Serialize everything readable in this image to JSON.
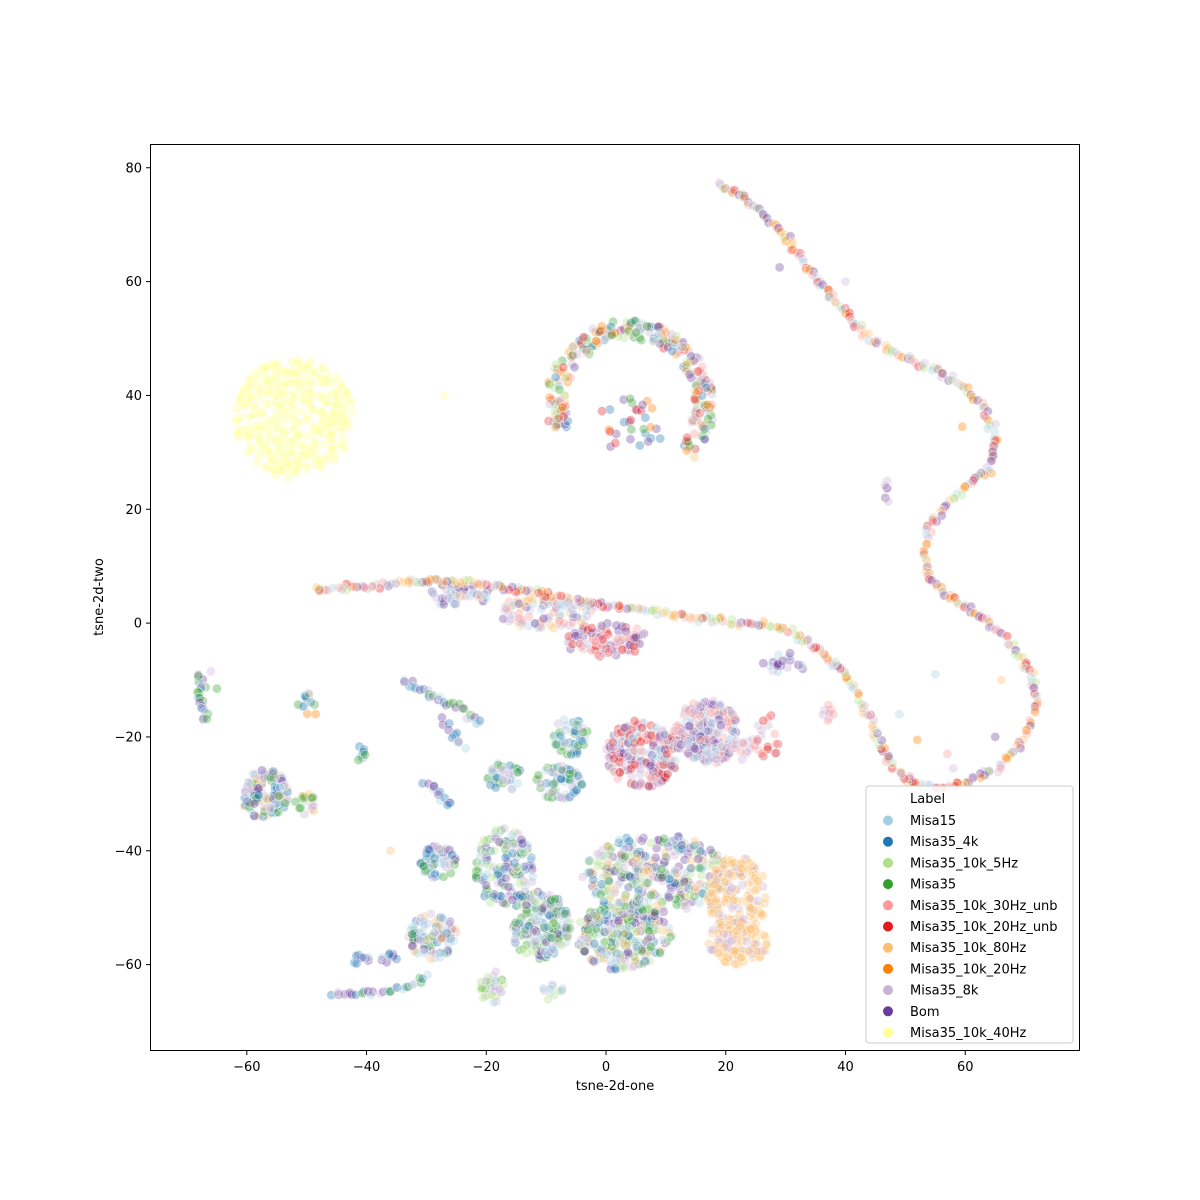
{
  "chart_data": {
    "type": "scatter",
    "xlabel": "tsne-2d-one",
    "ylabel": "tsne-2d-two",
    "xlim": [
      -76,
      79
    ],
    "ylim": [
      -75,
      84
    ],
    "xticks": [
      -60,
      -40,
      -20,
      0,
      20,
      40,
      60
    ],
    "yticks": [
      -60,
      -40,
      -20,
      0,
      20,
      40,
      60,
      80
    ],
    "xtick_labels": [
      "−60",
      "−40",
      "−20",
      "0",
      "20",
      "40",
      "60"
    ],
    "ytick_labels": [
      "−60",
      "−40",
      "−20",
      "0",
      "20",
      "40",
      "60",
      "80"
    ],
    "grid": false,
    "point_opacity": 0.35,
    "legend": {
      "title": "Label",
      "placement": "lower-right",
      "entries": [
        {
          "name": "Misa15",
          "color": "#a6cee3"
        },
        {
          "name": "Misa35_4k",
          "color": "#1f78b4"
        },
        {
          "name": "Misa35_10k_5Hz",
          "color": "#b2df8a"
        },
        {
          "name": "Misa35",
          "color": "#33a02c"
        },
        {
          "name": "Misa35_10k_30Hz_unb",
          "color": "#fb9a99"
        },
        {
          "name": "Misa35_10k_20Hz_unb",
          "color": "#e31a1c"
        },
        {
          "name": "Misa35_10k_80Hz",
          "color": "#fdbf6f"
        },
        {
          "name": "Misa35_10k_20Hz",
          "color": "#ff7f00"
        },
        {
          "name": "Misa35_8k",
          "color": "#cab2d6"
        },
        {
          "name": "Bom",
          "color": "#6a3d9a"
        },
        {
          "name": "Misa35_10k_40Hz",
          "color": "#ffff99"
        }
      ]
    },
    "clusters": [
      {
        "kind": "blob",
        "center": [
          -52,
          36
        ],
        "radius": [
          10,
          10.5
        ],
        "n": 380,
        "series": [
          10
        ]
      },
      {
        "kind": "ring",
        "center": [
          4,
          38.5
        ],
        "radius": [
          14.5,
          14.5
        ],
        "n": 260,
        "gap_deg": [
          200,
          320
        ],
        "series": [
          0,
          1,
          2,
          3,
          4,
          5,
          6,
          7,
          8,
          9
        ]
      },
      {
        "kind": "blob",
        "center": [
          4,
          35
        ],
        "radius": [
          6,
          5
        ],
        "n": 30,
        "series": [
          1,
          3,
          5,
          7,
          9
        ]
      },
      {
        "kind": "blob",
        "center": [
          -11,
          -53
        ],
        "radius": [
          5,
          6
        ],
        "n": 180,
        "series": [
          0,
          1,
          2,
          3,
          8,
          9
        ]
      },
      {
        "kind": "blob",
        "center": [
          3,
          -55
        ],
        "radius": [
          8,
          6
        ],
        "n": 260,
        "series": [
          0,
          1,
          2,
          3,
          6,
          8,
          9
        ]
      },
      {
        "kind": "blob",
        "center": [
          8,
          -44
        ],
        "radius": [
          12,
          7
        ],
        "n": 320,
        "series": [
          0,
          1,
          2,
          3,
          6,
          8,
          9
        ]
      },
      {
        "kind": "blob",
        "center": [
          22,
          -48
        ],
        "radius": [
          5,
          7
        ],
        "n": 160,
        "series": [
          6,
          6,
          6,
          8
        ]
      },
      {
        "kind": "blob",
        "center": [
          22,
          -56
        ],
        "radius": [
          5,
          4
        ],
        "n": 100,
        "series": [
          6,
          6,
          8
        ]
      },
      {
        "kind": "blob",
        "center": [
          -17,
          -43
        ],
        "radius": [
          5,
          7
        ],
        "n": 150,
        "series": [
          0,
          1,
          2,
          3,
          8,
          9
        ]
      },
      {
        "kind": "blob",
        "center": [
          -28,
          -42
        ],
        "radius": [
          3,
          3
        ],
        "n": 60,
        "series": [
          0,
          1,
          3,
          8,
          9
        ]
      },
      {
        "kind": "blob",
        "center": [
          -29,
          -55
        ],
        "radius": [
          4,
          4
        ],
        "n": 80,
        "series": [
          0,
          1,
          3,
          6,
          8,
          9
        ]
      },
      {
        "kind": "blob",
        "center": [
          -8,
          -28
        ],
        "radius": [
          4,
          3
        ],
        "n": 60,
        "series": [
          0,
          1,
          3,
          8
        ]
      },
      {
        "kind": "blob",
        "center": [
          -6,
          -20
        ],
        "radius": [
          3,
          3.5
        ],
        "n": 45,
        "series": [
          0,
          1,
          3,
          8
        ]
      },
      {
        "kind": "blob",
        "center": [
          -17,
          -27
        ],
        "radius": [
          3,
          2.5
        ],
        "n": 40,
        "series": [
          0,
          1,
          3,
          8
        ]
      },
      {
        "kind": "blob",
        "center": [
          -19,
          -64
        ],
        "radius": [
          2,
          3
        ],
        "n": 30,
        "series": [
          0,
          2,
          3,
          8
        ]
      },
      {
        "kind": "blob",
        "center": [
          -57,
          -30
        ],
        "radius": [
          4,
          4.5
        ],
        "n": 120,
        "series": [
          0,
          1,
          3,
          6,
          8,
          9
        ]
      },
      {
        "kind": "blob",
        "center": [
          -50,
          -32
        ],
        "radius": [
          2,
          2
        ],
        "n": 20,
        "series": [
          6,
          8,
          3
        ]
      },
      {
        "kind": "blob",
        "center": [
          6,
          -23
        ],
        "radius": [
          6,
          6
        ],
        "n": 200,
        "series": [
          4,
          5,
          8,
          9,
          0
        ]
      },
      {
        "kind": "blob",
        "center": [
          17,
          -19
        ],
        "radius": [
          5,
          6
        ],
        "n": 180,
        "series": [
          8,
          9,
          0,
          4
        ]
      },
      {
        "kind": "blob",
        "center": [
          0,
          -3
        ],
        "radius": [
          7,
          3
        ],
        "n": 90,
        "series": [
          4,
          5,
          8,
          9
        ]
      },
      {
        "kind": "blob",
        "center": [
          -10,
          2
        ],
        "radius": [
          8,
          3
        ],
        "n": 90,
        "series": [
          0,
          4,
          6,
          8,
          9
        ]
      },
      {
        "kind": "blob",
        "center": [
          -25,
          5
        ],
        "radius": [
          6,
          2
        ],
        "n": 50,
        "series": [
          0,
          6,
          8,
          9
        ]
      },
      {
        "kind": "blob",
        "center": [
          23,
          -22
        ],
        "radius": [
          3,
          2
        ],
        "n": 20,
        "series": [
          4,
          8
        ]
      },
      {
        "kind": "blob",
        "center": [
          27,
          -20
        ],
        "radius": [
          2,
          4
        ],
        "n": 20,
        "series": [
          4,
          5,
          8
        ]
      },
      {
        "kind": "curve",
        "n": 520,
        "jitter": 0.3,
        "series": [
          0,
          2,
          4,
          5,
          6,
          7,
          8,
          9
        ],
        "points": [
          [
            19,
            77.5
          ],
          [
            25,
            73
          ],
          [
            30,
            68
          ],
          [
            34,
            62
          ],
          [
            38,
            57
          ],
          [
            43,
            51
          ],
          [
            48,
            47.5
          ],
          [
            54,
            45
          ],
          [
            59,
            42
          ],
          [
            63,
            38
          ],
          [
            65,
            32
          ],
          [
            64,
            27
          ],
          [
            60,
            24
          ],
          [
            57,
            21
          ],
          [
            54,
            17
          ],
          [
            53,
            12
          ],
          [
            54,
            8
          ],
          [
            58,
            4
          ],
          [
            63,
            1
          ],
          [
            68,
            -4
          ],
          [
            71,
            -9
          ],
          [
            72,
            -14
          ],
          [
            70,
            -20
          ],
          [
            66,
            -25
          ],
          [
            60,
            -28
          ],
          [
            55,
            -29
          ],
          [
            51,
            -28
          ],
          [
            47,
            -24
          ],
          [
            44,
            -17
          ],
          [
            40,
            -9
          ],
          [
            36,
            -5
          ],
          [
            31,
            -1.5
          ],
          [
            26,
            0
          ],
          [
            20,
            0.2
          ],
          [
            15,
            0.8
          ],
          [
            10,
            1.8
          ],
          [
            5,
            2.5
          ],
          [
            0,
            3
          ],
          [
            -5,
            4
          ],
          [
            -10,
            5
          ],
          [
            -15,
            6
          ],
          [
            -20,
            6.8
          ],
          [
            -27,
            7.5
          ],
          [
            -34,
            7
          ],
          [
            -42,
            6.2
          ],
          [
            -49,
            5.8
          ]
        ]
      },
      {
        "kind": "curve",
        "n": 24,
        "jitter": 0.3,
        "series": [
          0,
          1,
          3,
          9
        ],
        "points": [
          [
            -68,
            -9
          ],
          [
            -67.5,
            -13
          ],
          [
            -67,
            -17
          ]
        ]
      },
      {
        "kind": "curve",
        "n": 30,
        "jitter": 0.3,
        "series": [
          0,
          1,
          3,
          8,
          9
        ],
        "points": [
          [
            -45.5,
            -65
          ],
          [
            -40,
            -65
          ],
          [
            -34,
            -64.5
          ],
          [
            -30,
            -62
          ]
        ]
      },
      {
        "kind": "curve",
        "n": 30,
        "jitter": 0.3,
        "series": [
          0,
          1,
          3,
          8,
          9
        ],
        "points": [
          [
            -34,
            -10
          ],
          [
            -29,
            -13
          ],
          [
            -24,
            -15
          ],
          [
            -21,
            -18
          ]
        ]
      },
      {
        "kind": "curve",
        "n": 12,
        "jitter": 0.3,
        "series": [
          0,
          1,
          9
        ],
        "points": [
          [
            -30,
            -28
          ],
          [
            -28,
            -30
          ],
          [
            -26,
            -32
          ]
        ]
      },
      {
        "kind": "curve",
        "n": 10,
        "jitter": 0.3,
        "series": [
          0,
          1,
          9
        ],
        "points": [
          [
            -27,
            -17
          ],
          [
            -25,
            -20
          ],
          [
            -24,
            -22
          ]
        ]
      },
      {
        "kind": "blob",
        "center": [
          -50,
          -14
        ],
        "radius": [
          1.5,
          2
        ],
        "n": 12,
        "series": [
          0,
          1,
          3,
          7
        ]
      },
      {
        "kind": "blob",
        "center": [
          -41,
          -23
        ],
        "radius": [
          1,
          1.5
        ],
        "n": 10,
        "series": [
          0,
          1,
          3
        ]
      },
      {
        "kind": "blob",
        "center": [
          -41,
          -59
        ],
        "radius": [
          1.5,
          1
        ],
        "n": 10,
        "series": [
          0,
          1,
          9
        ]
      },
      {
        "kind": "blob",
        "center": [
          -36,
          -59
        ],
        "radius": [
          1.5,
          1
        ],
        "n": 8,
        "series": [
          0,
          1,
          9
        ]
      },
      {
        "kind": "blob",
        "center": [
          -9,
          -65
        ],
        "radius": [
          2,
          1.5
        ],
        "n": 12,
        "series": [
          0,
          2,
          8
        ]
      },
      {
        "kind": "blob",
        "center": [
          37,
          -16
        ],
        "radius": [
          1,
          2
        ],
        "n": 8,
        "series": [
          4,
          8
        ]
      },
      {
        "kind": "blob",
        "center": [
          47,
          23
        ],
        "radius": [
          0.5,
          2
        ],
        "n": 6,
        "series": [
          9,
          8
        ]
      },
      {
        "kind": "blob",
        "center": [
          14,
          -20
        ],
        "radius": [
          3,
          3
        ],
        "n": 40,
        "series": [
          0,
          4,
          8,
          9
        ]
      },
      {
        "kind": "blob",
        "center": [
          30,
          -7
        ],
        "radius": [
          4,
          2
        ],
        "n": 20,
        "series": [
          8,
          9,
          0
        ]
      }
    ],
    "outliers": [
      {
        "x": 29,
        "y": 62.5,
        "series": 9
      },
      {
        "x": 40,
        "y": 60,
        "series": 8
      },
      {
        "x": 59.5,
        "y": 34.5,
        "series": 7
      },
      {
        "x": -27,
        "y": 40,
        "series": 10
      },
      {
        "x": 66,
        "y": -10,
        "series": 6
      },
      {
        "x": 55,
        "y": -9,
        "series": 0
      },
      {
        "x": 49,
        "y": -16,
        "series": 0
      },
      {
        "x": 52,
        "y": -20.5,
        "series": 7
      },
      {
        "x": 57,
        "y": -23,
        "series": 4
      },
      {
        "x": 58,
        "y": -25.5,
        "series": 8
      },
      {
        "x": 65,
        "y": -20,
        "series": 9
      },
      {
        "x": -66,
        "y": -8.5,
        "series": 8
      },
      {
        "x": -65,
        "y": -11.5,
        "series": 3
      },
      {
        "x": -48.5,
        "y": -16,
        "series": 7
      },
      {
        "x": -36,
        "y": -40,
        "series": 6
      },
      {
        "x": 38,
        "y": -16,
        "series": 4
      }
    ]
  }
}
